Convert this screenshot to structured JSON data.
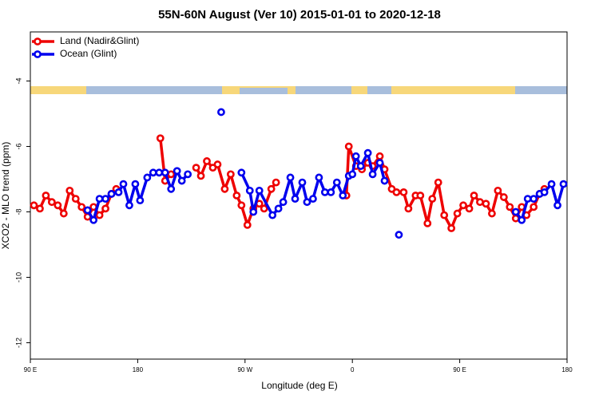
{
  "chart_data": {
    "type": "line",
    "title": "55N-60N August (Ver 10)   2015-01-01 to 2020-12-18",
    "x_label": "Longitude (deg E)",
    "y_label": "XCO2 - MLO trend (ppm)",
    "xlim": [
      90,
      540
    ],
    "ylim": [
      -12.5,
      -2.5
    ],
    "xticks": [
      {
        "value": 90,
        "label": "90 E"
      },
      {
        "value": 180,
        "label": "180"
      },
      {
        "value": 270,
        "label": "90 W"
      },
      {
        "value": 360,
        "label": "0"
      },
      {
        "value": 450,
        "label": "90 E"
      },
      {
        "value": 540,
        "label": "180"
      }
    ],
    "yticks": [
      -4,
      -6,
      -8,
      -10,
      -12
    ],
    "legend": "top-left",
    "series": [
      {
        "name": "Land (Nadir&Glint)",
        "color": "#ee0000",
        "x": [
          93,
          98,
          103,
          108,
          113,
          118,
          123,
          128,
          133,
          138,
          143,
          148,
          153,
          158,
          162,
          null,
          199,
          203,
          208,
          null,
          229,
          233,
          238,
          243,
          247,
          253,
          258,
          263,
          267,
          272,
          277,
          282,
          286,
          292,
          296,
          null,
          355,
          357,
          363,
          368,
          373,
          377,
          383,
          387,
          393,
          397,
          403,
          407,
          413,
          417,
          423,
          427,
          432,
          437,
          443,
          448,
          453,
          458,
          462,
          467,
          472,
          477,
          482,
          487,
          492,
          497,
          502,
          506,
          512,
          517,
          521
        ],
        "values": [
          -7.8,
          -7.9,
          -7.5,
          -7.7,
          -7.8,
          -8.05,
          -7.35,
          -7.6,
          -7.85,
          -8.15,
          -7.85,
          -8.1,
          -7.9,
          -7.45,
          -7.3,
          null,
          -5.75,
          -7.05,
          -6.85,
          null,
          -6.65,
          -6.9,
          -6.45,
          -6.65,
          -6.55,
          -7.3,
          -6.85,
          -7.5,
          -7.8,
          -8.4,
          -7.9,
          -7.75,
          -7.9,
          -7.3,
          -7.1,
          null,
          -7.5,
          -6.0,
          -6.6,
          -6.7,
          -6.5,
          -6.6,
          -6.3,
          -6.7,
          -7.3,
          -7.4,
          -7.4,
          -7.9,
          -7.5,
          -7.5,
          -8.35,
          -7.6,
          -7.1,
          -8.1,
          -8.5,
          -8.05,
          -7.8,
          -7.9,
          -7.5,
          -7.7,
          -7.75,
          -8.05,
          -7.35,
          -7.55,
          -7.85,
          -8.2,
          -7.85,
          -8.1,
          -7.85,
          -7.45,
          -7.3
        ]
      },
      {
        "name": "Ocean (Glint)",
        "color": "#0000ee",
        "x": [
          138,
          143,
          148,
          153,
          158,
          164,
          168,
          173,
          178,
          182,
          188,
          193,
          198,
          203,
          208,
          213,
          217,
          222,
          null,
          250,
          null,
          267,
          274,
          277,
          282,
          293,
          298,
          302,
          308,
          312,
          318,
          322,
          327,
          332,
          337,
          342,
          347,
          352,
          357,
          360,
          363,
          367,
          373,
          377,
          383,
          387,
          null,
          399,
          null,
          497,
          502,
          507,
          512,
          517,
          521,
          527,
          532,
          537
        ],
        "values": [
          -7.95,
          -8.25,
          -7.6,
          -7.6,
          -7.45,
          -7.4,
          -7.15,
          -7.8,
          -7.15,
          -7.65,
          -6.95,
          -6.8,
          -6.8,
          -6.8,
          -7.3,
          -6.75,
          -7.05,
          -6.85,
          null,
          -4.95,
          null,
          -6.8,
          -7.35,
          -8.0,
          -7.35,
          -8.1,
          -7.9,
          -7.7,
          -6.95,
          -7.6,
          -7.1,
          -7.7,
          -7.6,
          -6.95,
          -7.4,
          -7.4,
          -7.1,
          -7.5,
          -6.9,
          -6.85,
          -6.3,
          -6.6,
          -6.2,
          -6.85,
          -6.5,
          -7.05,
          null,
          -8.7,
          null,
          -8.0,
          -8.25,
          -7.6,
          -7.6,
          -7.45,
          -7.4,
          -7.15,
          -7.8,
          -7.15
        ]
      }
    ]
  }
}
